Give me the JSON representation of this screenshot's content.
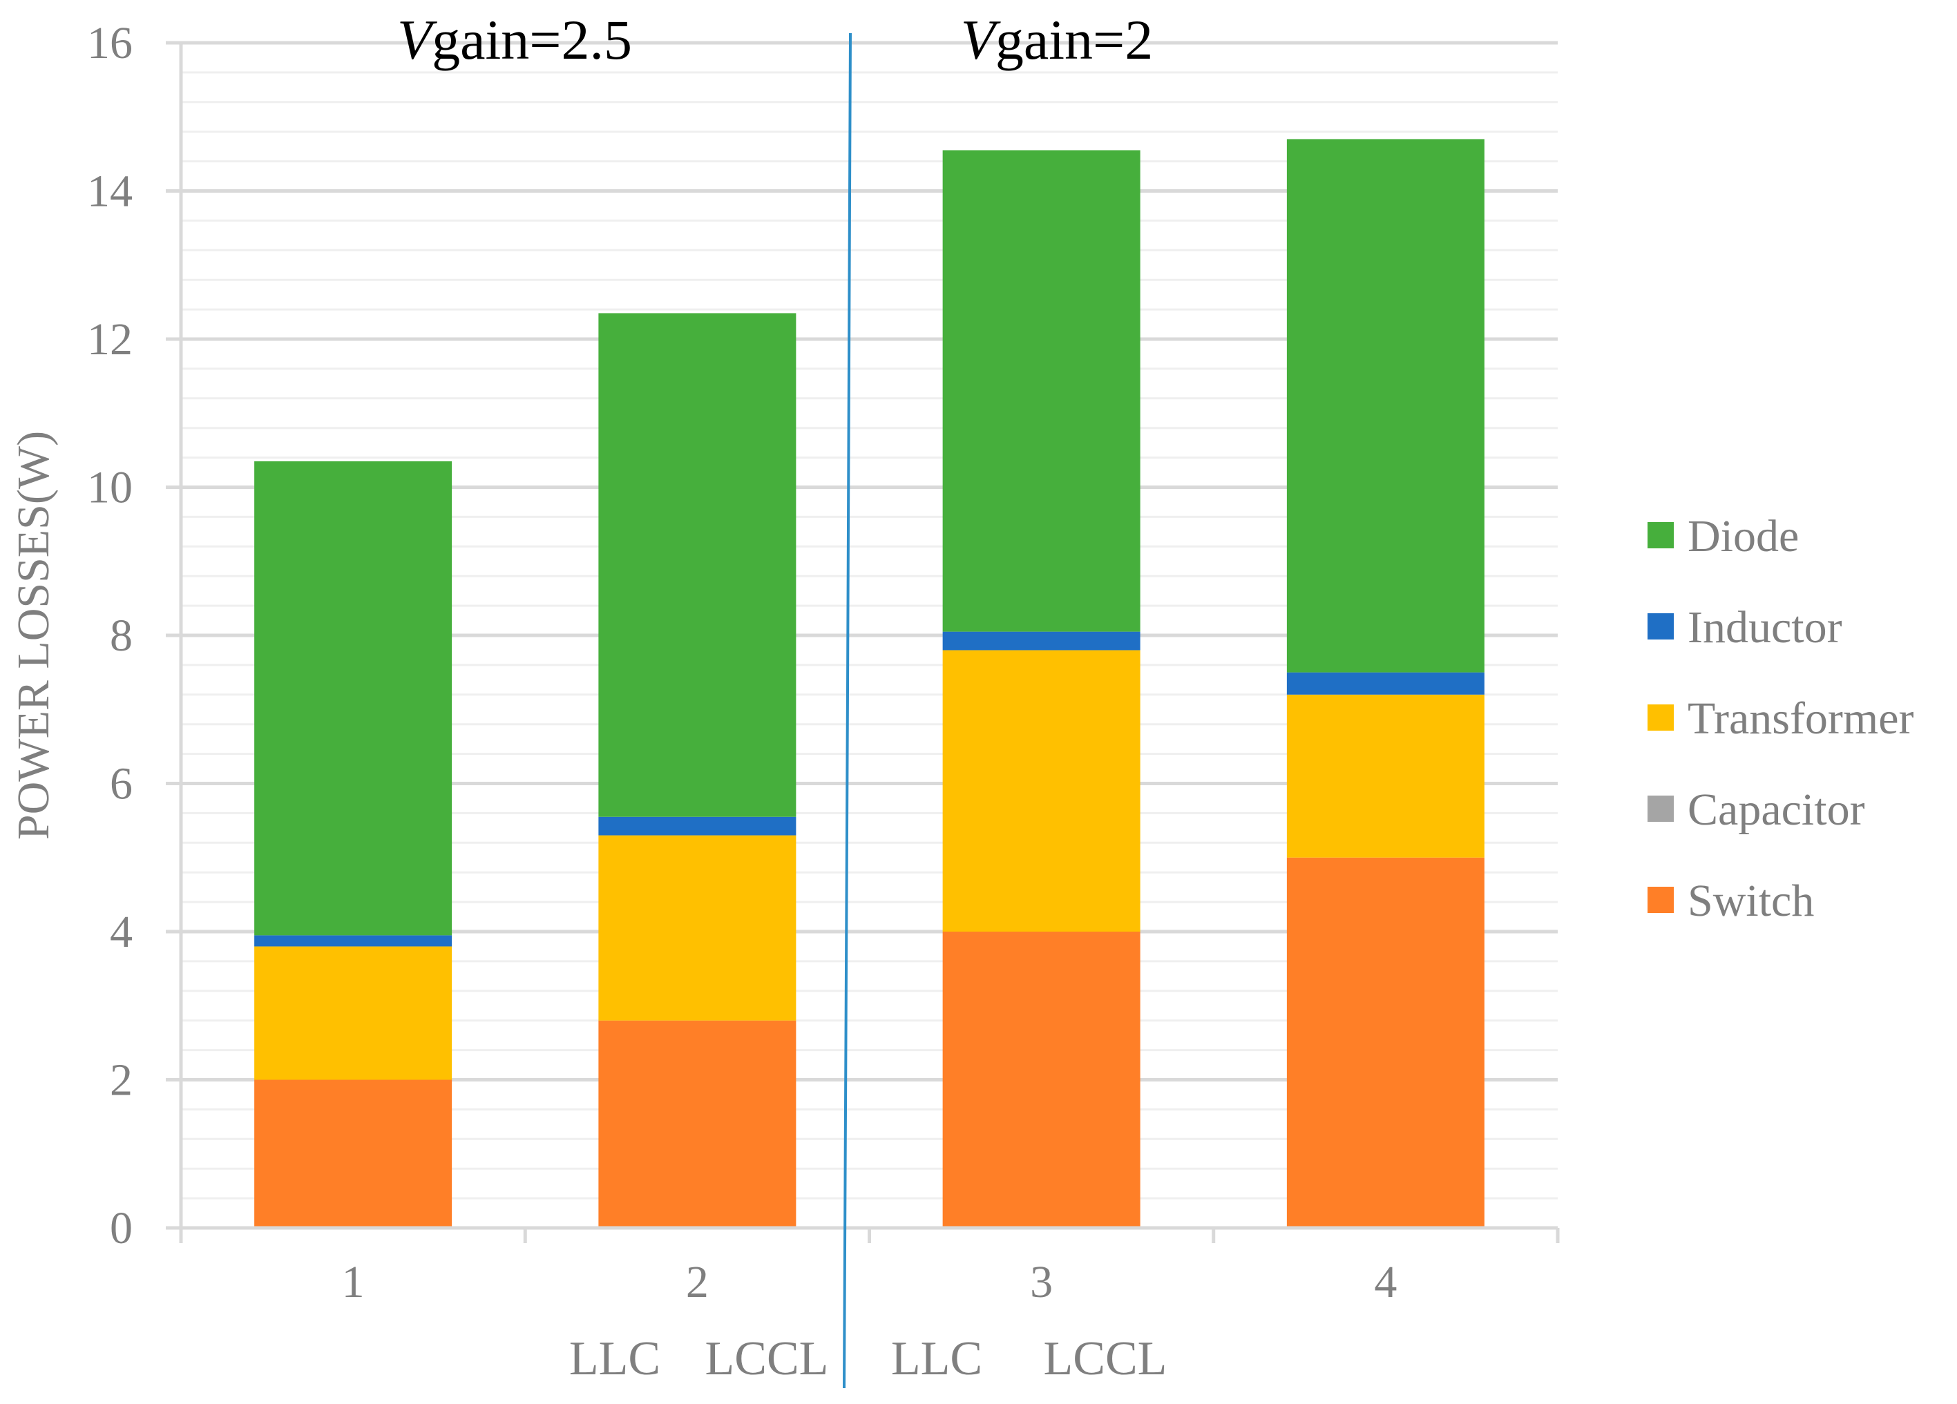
{
  "chart_data": {
    "type": "bar",
    "stacked": true,
    "title": "",
    "xlabel": "",
    "ylabel": "POWER LOSSES(W)",
    "ylim": [
      0,
      16
    ],
    "y_major_ticks": [
      0,
      2,
      4,
      6,
      8,
      10,
      12,
      14,
      16
    ],
    "y_minor_step": 0.4,
    "grid": true,
    "categories": [
      "1",
      "2",
      "3",
      "4"
    ],
    "sub_labels": [
      "LLC",
      "LCCL",
      "LLC",
      "LCCL"
    ],
    "regions": [
      {
        "italic": "V",
        "rest": "gain=2.5"
      },
      {
        "italic": "V",
        "rest": "gain=2"
      }
    ],
    "series": [
      {
        "name": "Switch",
        "color": "#FF7F27",
        "values": [
          2.0,
          2.8,
          4.0,
          5.0
        ]
      },
      {
        "name": "Capacitor",
        "color": "#A5A5A5",
        "values": [
          0.0,
          0.0,
          0.0,
          0.0
        ]
      },
      {
        "name": "Transformer",
        "color": "#FFC000",
        "values": [
          1.8,
          2.5,
          3.8,
          2.2
        ]
      },
      {
        "name": "Inductor",
        "color": "#1F6FC5",
        "values": [
          0.15,
          0.25,
          0.25,
          0.3
        ]
      },
      {
        "name": "Diode",
        "color": "#46AF3C",
        "values": [
          6.4,
          6.8,
          6.5,
          7.2
        ]
      }
    ],
    "legend_order": [
      "Diode",
      "Inductor",
      "Transformer",
      "Capacitor",
      "Switch"
    ],
    "legend_position": "right",
    "colors": {
      "major_grid": "#D9D9D9",
      "minor_grid": "#EFEFEF",
      "axis": "#D9D9D9",
      "separator": "#2E8FC9"
    }
  }
}
